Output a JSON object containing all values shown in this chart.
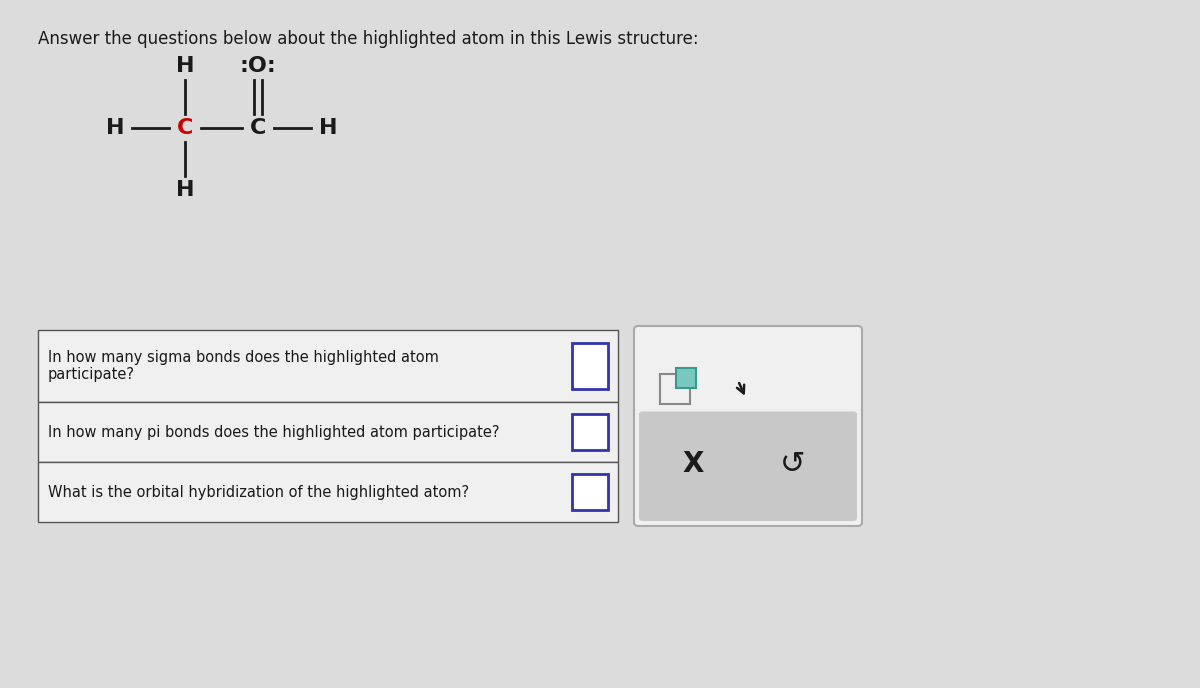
{
  "title": "Answer the questions below about the highlighted atom in this Lewis structure:",
  "title_fontsize": 12,
  "bg_color": "#dcdcdc",
  "text_color": "#1a1a1a",
  "highlight_color": "#cc0000",
  "questions": [
    "In how many sigma bonds does the highlighted atom\nparticipate?",
    "In how many pi bonds does the highlighted atom participate?",
    "What is the orbital hybridization of the highlighted atom?"
  ],
  "input_box_color": "#ffffff",
  "input_border_color": "#3333aa",
  "table_bg": "#f0f0f0",
  "table_border": "#555555",
  "panel_bg_top": "#f0f0f0",
  "panel_bg_bottom": "#c8c8c8",
  "panel_border": "#aaaaaa",
  "icon_sq_large_fill": "#f0f0f0",
  "icon_sq_large_edge": "#888888",
  "icon_sq_small_fill": "#78c8c0",
  "icon_sq_small_edge": "#3a9a8a",
  "x_mark": "X",
  "undo_char": "↺",
  "struct_fs": 16,
  "struct_bold": true
}
